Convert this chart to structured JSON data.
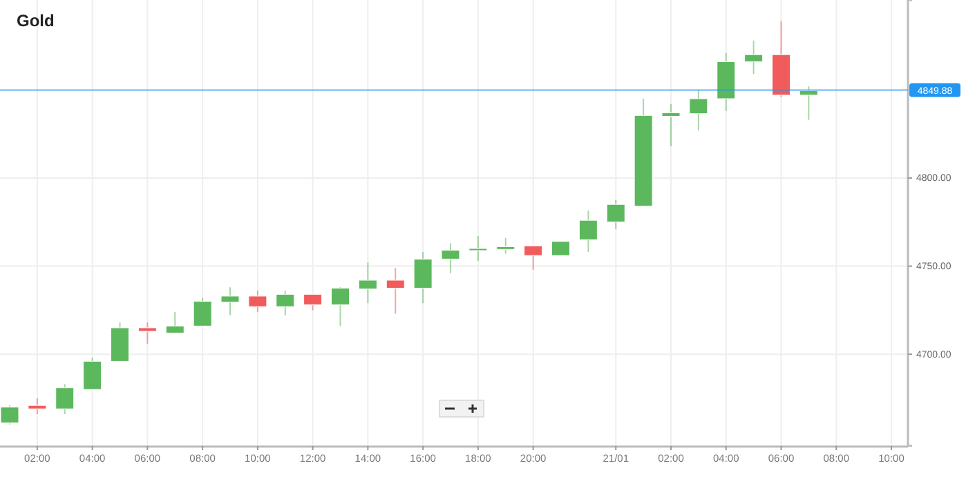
{
  "chart_data": {
    "type": "candlestick",
    "title": "Gold",
    "categories": [
      null,
      "02:00",
      null,
      "04:00",
      null,
      "06:00",
      null,
      "08:00",
      null,
      "10:00",
      null,
      "12:00",
      null,
      "14:00",
      null,
      "16:00",
      null,
      "18:00",
      null,
      "20:00",
      null,
      null,
      "21/01",
      null,
      "02:00",
      null,
      "04:00",
      null,
      "06:00",
      null,
      "08:00",
      null,
      "10:00"
    ],
    "ohlc": [
      [
        4661,
        4671,
        4660,
        4670
      ],
      [
        4671,
        4675,
        4666,
        4669
      ],
      [
        4669,
        4683,
        4666,
        4681
      ],
      [
        4680,
        4698,
        4680,
        4696
      ],
      [
        4696,
        4718,
        4696,
        4715
      ],
      [
        4715,
        4718,
        4706,
        4713
      ],
      [
        4712,
        4724,
        4712,
        4716
      ],
      [
        4716,
        4732,
        4716,
        4730
      ],
      [
        4729.5,
        4738,
        4722,
        4733
      ],
      [
        4733,
        4736,
        4724,
        4727
      ],
      [
        4727,
        4736,
        4722,
        4734
      ],
      [
        4734,
        4734,
        4725,
        4728
      ],
      [
        4728,
        4738,
        4716,
        4737.5
      ],
      [
        4737,
        4752,
        4729,
        4742
      ],
      [
        4742,
        4749,
        4723,
        4737.5
      ],
      [
        4737.5,
        4758,
        4729,
        4754
      ],
      [
        4754,
        4763,
        4746,
        4759
      ],
      [
        4760,
        4767,
        4753,
        4760
      ],
      [
        4759.5,
        4766,
        4757,
        4761
      ],
      [
        4761.5,
        4761.5,
        4748,
        4756
      ],
      [
        4756,
        4764,
        4756,
        4764
      ],
      [
        4765,
        4781.5,
        4758,
        4776
      ],
      [
        4775,
        4787.5,
        4771,
        4785
      ],
      [
        4784,
        4845,
        4784,
        4835.5
      ],
      [
        4835,
        4842,
        4818,
        4837
      ],
      [
        4836.5,
        4850,
        4827,
        4845
      ],
      [
        4845,
        4871,
        4838,
        4866
      ],
      [
        4866,
        4878,
        4859,
        4870
      ],
      [
        4870,
        4889,
        4846,
        4847
      ],
      [
        4847,
        4852,
        4833,
        4849.5
      ],
      null,
      null,
      null
    ],
    "colors": [
      "#5cb85c",
      "#f25b5b",
      "#5cb85c",
      "#5cb85c",
      "#5cb85c",
      "#f25b5b",
      "#5cb85c",
      "#5cb85c",
      "#5cb85c",
      "#f25b5b",
      "#5cb85c",
      "#f25b5b",
      "#5cb85c",
      "#5cb85c",
      "#f25b5b",
      "#5cb85c",
      "#5cb85c",
      "#5cb85c",
      "#5cb85c",
      "#f25b5b",
      "#5cb85c",
      "#5cb85c",
      "#5cb85c",
      "#5cb85c",
      "#5cb85c",
      "#5cb85c",
      "#5cb85c",
      "#5cb85c",
      "#f25b5b",
      "#5cb85c",
      null,
      null,
      null
    ],
    "ylim": [
      4648,
      4901
    ],
    "yticks": [
      {
        "value": 4700,
        "label": "4700.00"
      },
      {
        "value": 4750,
        "label": "4750.00"
      },
      {
        "value": 4800,
        "label": "4800.00"
      }
    ],
    "grid": true,
    "ref_lines": [
      {
        "axis": "y",
        "value": 4849.88,
        "label": "4849.88",
        "color": "#2196f3"
      }
    ]
  }
}
